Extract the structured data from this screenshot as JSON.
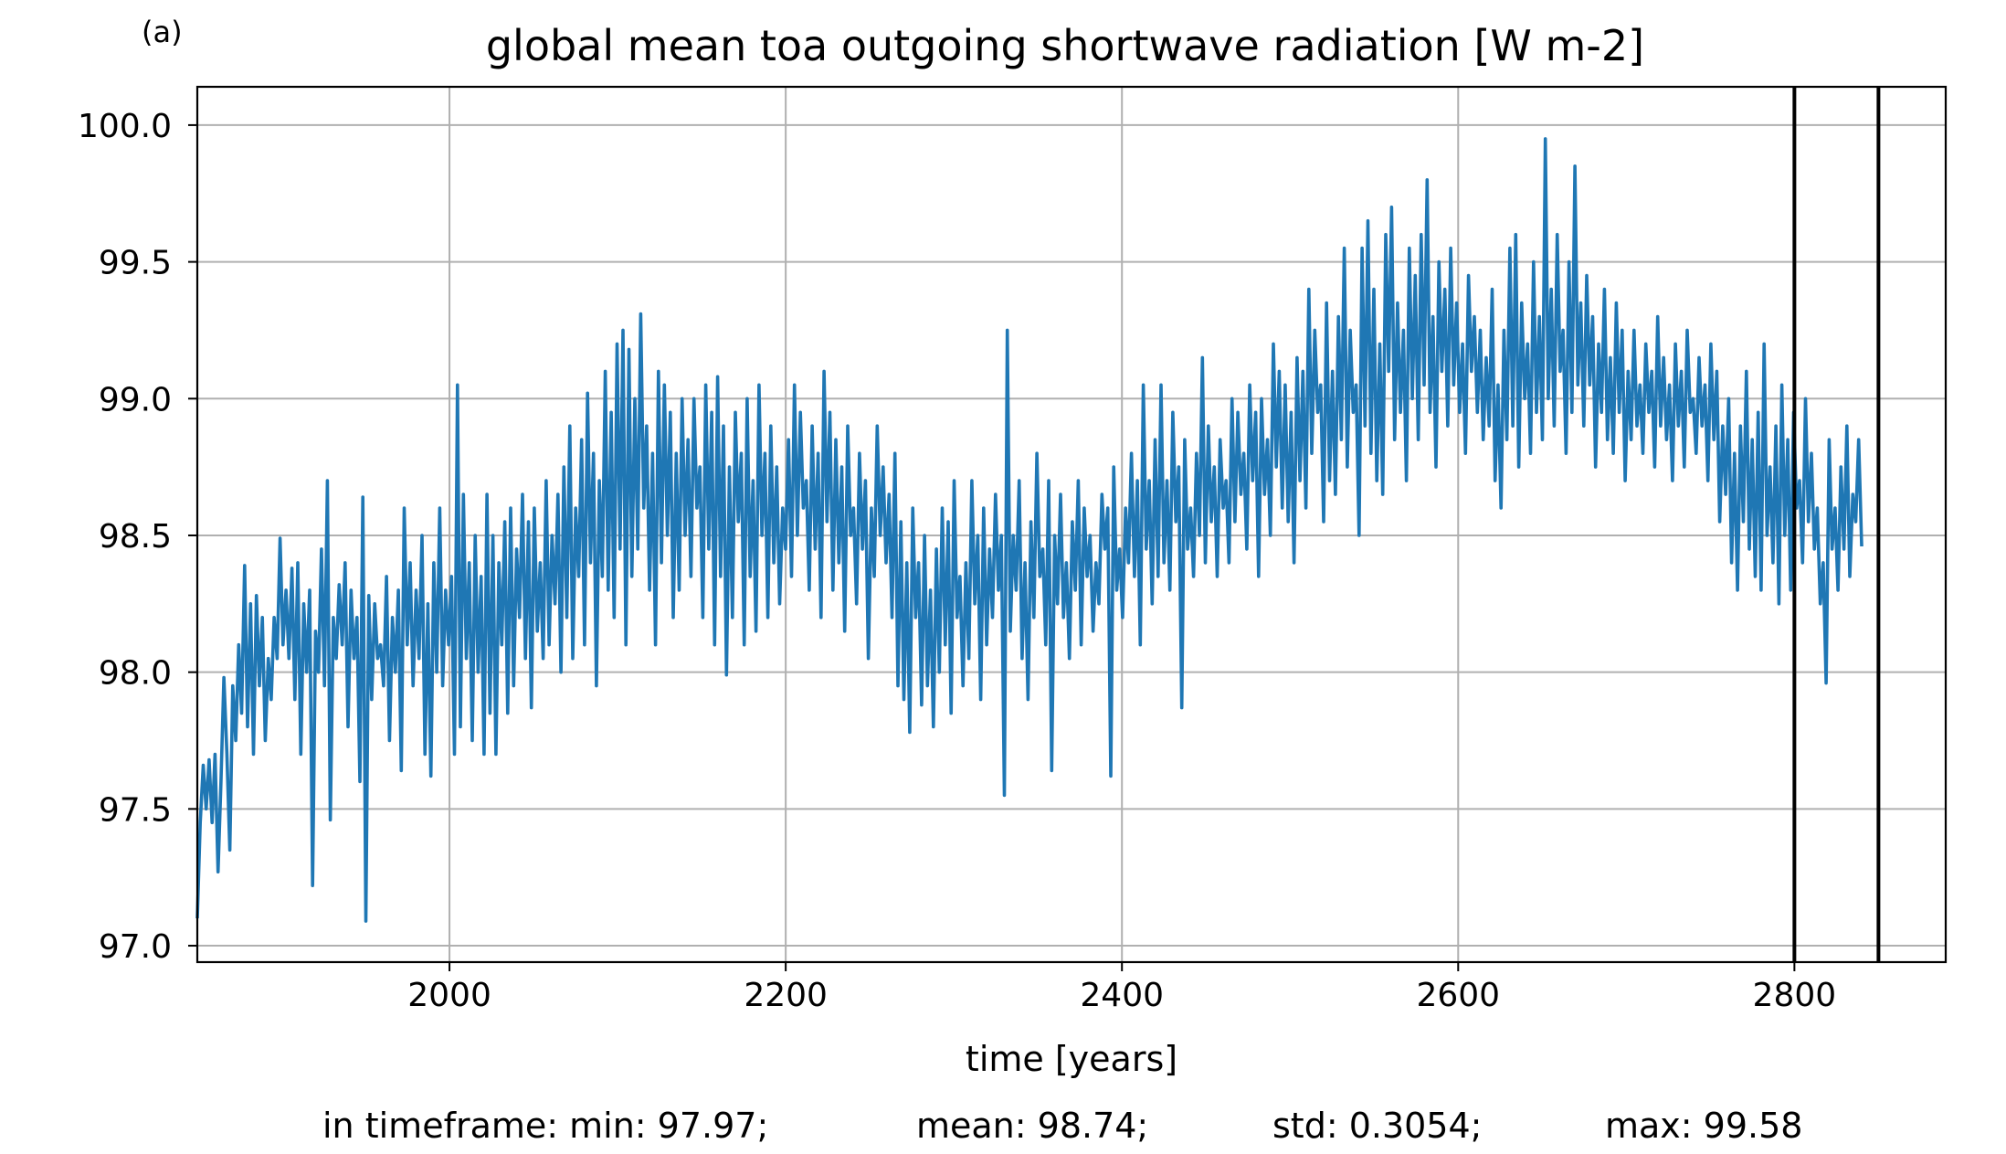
{
  "panel_label": "(a)",
  "stats": {
    "min": "in timeframe: min: 97.97;",
    "mean": "mean: 98.74;",
    "std": "std: 0.3054;",
    "max": "max: 99.58"
  },
  "colors": {
    "series": "#1f77b4",
    "grid": "#b0b0b0",
    "markers": "#000000"
  },
  "chart_data": {
    "type": "line",
    "title": "global mean toa outgoing shortwave radiation [W m-2]",
    "xlabel": "time [years]",
    "ylabel": "",
    "xlim": [
      1850,
      2890
    ],
    "ylim": [
      96.94,
      100.14
    ],
    "xticks": [
      2000,
      2200,
      2400,
      2600,
      2800
    ],
    "xtick_labels": [
      "2000",
      "2200",
      "2400",
      "2600",
      "2800"
    ],
    "yticks": [
      97.0,
      97.5,
      98.0,
      98.5,
      99.0,
      99.5,
      100.0
    ],
    "ytick_labels": [
      "97.0",
      "97.5",
      "98.0",
      "98.5",
      "99.0",
      "99.5",
      "100.0"
    ],
    "grid": true,
    "vlines": [
      2800,
      2850
    ],
    "series": [
      {
        "x_start": 1850,
        "x_end": 2840,
        "values": [
          97.1,
          97.45,
          97.66,
          97.5,
          97.68,
          97.45,
          97.7,
          97.27,
          97.6,
          97.98,
          97.7,
          97.35,
          97.95,
          97.75,
          98.1,
          97.85,
          98.39,
          97.8,
          98.25,
          97.7,
          98.28,
          97.95,
          98.2,
          97.75,
          98.05,
          97.9,
          98.2,
          98.05,
          98.49,
          98.1,
          98.3,
          98.05,
          98.38,
          97.9,
          98.4,
          97.7,
          98.25,
          98.0,
          98.3,
          97.22,
          98.15,
          98.0,
          98.45,
          97.95,
          98.7,
          97.46,
          98.2,
          98.05,
          98.32,
          98.1,
          98.4,
          97.8,
          98.3,
          98.05,
          98.2,
          97.6,
          98.64,
          97.09,
          98.28,
          97.9,
          98.25,
          98.05,
          98.1,
          97.95,
          98.35,
          97.75,
          98.2,
          98.0,
          98.3,
          97.64,
          98.6,
          98.1,
          98.4,
          97.95,
          98.3,
          98.05,
          98.5,
          97.7,
          98.25,
          97.62,
          98.4,
          98.0,
          98.6,
          97.95,
          98.3,
          98.1,
          98.35,
          97.7,
          99.05,
          97.8,
          98.65,
          98.05,
          98.4,
          97.75,
          98.5,
          98.0,
          98.35,
          97.7,
          98.65,
          97.85,
          98.5,
          97.7,
          98.4,
          98.1,
          98.55,
          97.85,
          98.6,
          97.95,
          98.45,
          98.2,
          98.65,
          98.05,
          98.55,
          97.87,
          98.6,
          98.15,
          98.4,
          98.05,
          98.7,
          98.1,
          98.5,
          98.25,
          98.65,
          98.0,
          98.75,
          98.2,
          98.9,
          98.05,
          98.6,
          98.35,
          98.85,
          98.1,
          99.02,
          98.4,
          98.8,
          97.95,
          98.7,
          98.35,
          99.1,
          98.3,
          98.95,
          98.2,
          99.2,
          98.45,
          99.25,
          98.1,
          99.18,
          98.35,
          99.0,
          98.45,
          99.31,
          98.6,
          98.9,
          98.3,
          98.8,
          98.1,
          99.1,
          98.4,
          99.05,
          98.5,
          98.95,
          98.2,
          98.8,
          98.3,
          99.0,
          98.5,
          98.85,
          98.35,
          99.0,
          98.6,
          98.75,
          98.2,
          99.05,
          98.45,
          98.95,
          98.1,
          99.08,
          98.35,
          98.9,
          97.99,
          98.75,
          98.2,
          98.95,
          98.55,
          98.8,
          98.1,
          99.0,
          98.35,
          98.7,
          98.15,
          99.05,
          98.5,
          98.8,
          98.2,
          98.9,
          98.4,
          98.75,
          98.25,
          98.6,
          98.45,
          98.85,
          98.35,
          99.05,
          98.5,
          98.95,
          98.6,
          98.7,
          98.3,
          98.9,
          98.45,
          98.8,
          98.2,
          99.1,
          98.55,
          98.95,
          98.3,
          98.85,
          98.4,
          98.75,
          98.15,
          98.9,
          98.5,
          98.6,
          98.25,
          98.8,
          98.45,
          98.7,
          98.05,
          98.6,
          98.35,
          98.9,
          98.5,
          98.75,
          98.4,
          98.65,
          98.2,
          98.8,
          97.95,
          98.55,
          97.9,
          98.4,
          97.78,
          98.6,
          98.2,
          98.4,
          97.88,
          98.5,
          97.95,
          98.3,
          97.8,
          98.45,
          98.0,
          98.6,
          98.1,
          98.55,
          97.85,
          98.7,
          98.2,
          98.35,
          97.95,
          98.4,
          98.05,
          98.7,
          98.25,
          98.5,
          97.9,
          98.6,
          98.1,
          98.45,
          98.2,
          98.65,
          98.3,
          98.5,
          97.55,
          99.25,
          98.15,
          98.5,
          98.3,
          98.7,
          98.05,
          98.4,
          97.9,
          98.55,
          98.2,
          98.8,
          98.35,
          98.45,
          98.1,
          98.7,
          97.64,
          98.5,
          98.25,
          98.65,
          98.2,
          98.4,
          98.05,
          98.55,
          98.3,
          98.7,
          98.1,
          98.6,
          98.35,
          98.5,
          98.15,
          98.4,
          98.25,
          98.65,
          98.45,
          98.6,
          97.62,
          98.75,
          98.3,
          98.45,
          98.2,
          98.6,
          98.4,
          98.8,
          98.35,
          98.7,
          98.1,
          99.05,
          98.45,
          98.7,
          98.25,
          98.85,
          98.35,
          99.05,
          98.4,
          98.7,
          98.3,
          98.95,
          98.55,
          98.75,
          97.87,
          98.85,
          98.45,
          98.6,
          98.35,
          98.8,
          98.5,
          99.15,
          98.4,
          98.9,
          98.55,
          98.75,
          98.35,
          98.85,
          98.6,
          98.7,
          98.4,
          99.0,
          98.55,
          98.95,
          98.65,
          98.8,
          98.45,
          99.05,
          98.7,
          98.95,
          98.35,
          99.0,
          98.65,
          98.85,
          98.5,
          99.2,
          98.75,
          99.1,
          98.6,
          99.05,
          98.55,
          98.95,
          98.4,
          99.15,
          98.7,
          99.1,
          98.6,
          99.4,
          98.8,
          99.25,
          98.95,
          99.05,
          98.55,
          99.35,
          98.7,
          99.1,
          98.65,
          99.3,
          98.85,
          99.55,
          98.75,
          99.25,
          98.95,
          99.05,
          98.5,
          99.55,
          98.9,
          99.65,
          98.8,
          99.4,
          98.7,
          99.2,
          98.65,
          99.6,
          99.1,
          99.7,
          98.85,
          99.35,
          98.95,
          99.25,
          98.7,
          99.55,
          99.0,
          99.45,
          98.85,
          99.6,
          99.05,
          99.8,
          98.95,
          99.3,
          98.75,
          99.5,
          99.1,
          99.4,
          98.9,
          99.55,
          99.05,
          99.35,
          98.95,
          99.2,
          98.8,
          99.45,
          99.1,
          99.3,
          98.95,
          99.25,
          98.85,
          99.15,
          98.9,
          99.4,
          98.7,
          99.05,
          98.6,
          99.25,
          98.85,
          99.55,
          98.9,
          99.6,
          98.75,
          99.35,
          99.0,
          99.2,
          98.8,
          99.5,
          98.95,
          99.3,
          98.85,
          99.95,
          99.0,
          99.4,
          98.9,
          99.6,
          99.1,
          99.25,
          98.8,
          99.5,
          98.95,
          99.85,
          99.05,
          99.35,
          98.9,
          99.45,
          99.05,
          99.3,
          98.75,
          99.2,
          98.95,
          99.4,
          98.85,
          99.15,
          98.8,
          99.35,
          98.95,
          99.25,
          98.7,
          99.1,
          98.85,
          99.25,
          98.9,
          99.05,
          98.8,
          99.2,
          98.95,
          99.1,
          98.75,
          99.3,
          98.9,
          99.15,
          98.85,
          99.05,
          98.7,
          99.2,
          98.9,
          99.1,
          98.75,
          99.25,
          98.95,
          99.0,
          98.8,
          99.15,
          98.9,
          99.05,
          98.7,
          99.2,
          98.85,
          99.1,
          98.55,
          98.9,
          98.65,
          99.0,
          98.4,
          98.8,
          98.3,
          98.9,
          98.55,
          99.1,
          98.45,
          98.85,
          98.35,
          98.95,
          98.3,
          99.2,
          98.5,
          98.75,
          98.4,
          98.9,
          98.25,
          99.05,
          98.5,
          98.85,
          98.3,
          98.95,
          98.6,
          98.7,
          98.4,
          99.0,
          98.55,
          98.8,
          98.45,
          98.6,
          98.25,
          98.4,
          97.96,
          98.85,
          98.45,
          98.6,
          98.3,
          98.75,
          98.45,
          98.9,
          98.35,
          98.65,
          98.55,
          98.85,
          98.46
        ]
      }
    ]
  }
}
